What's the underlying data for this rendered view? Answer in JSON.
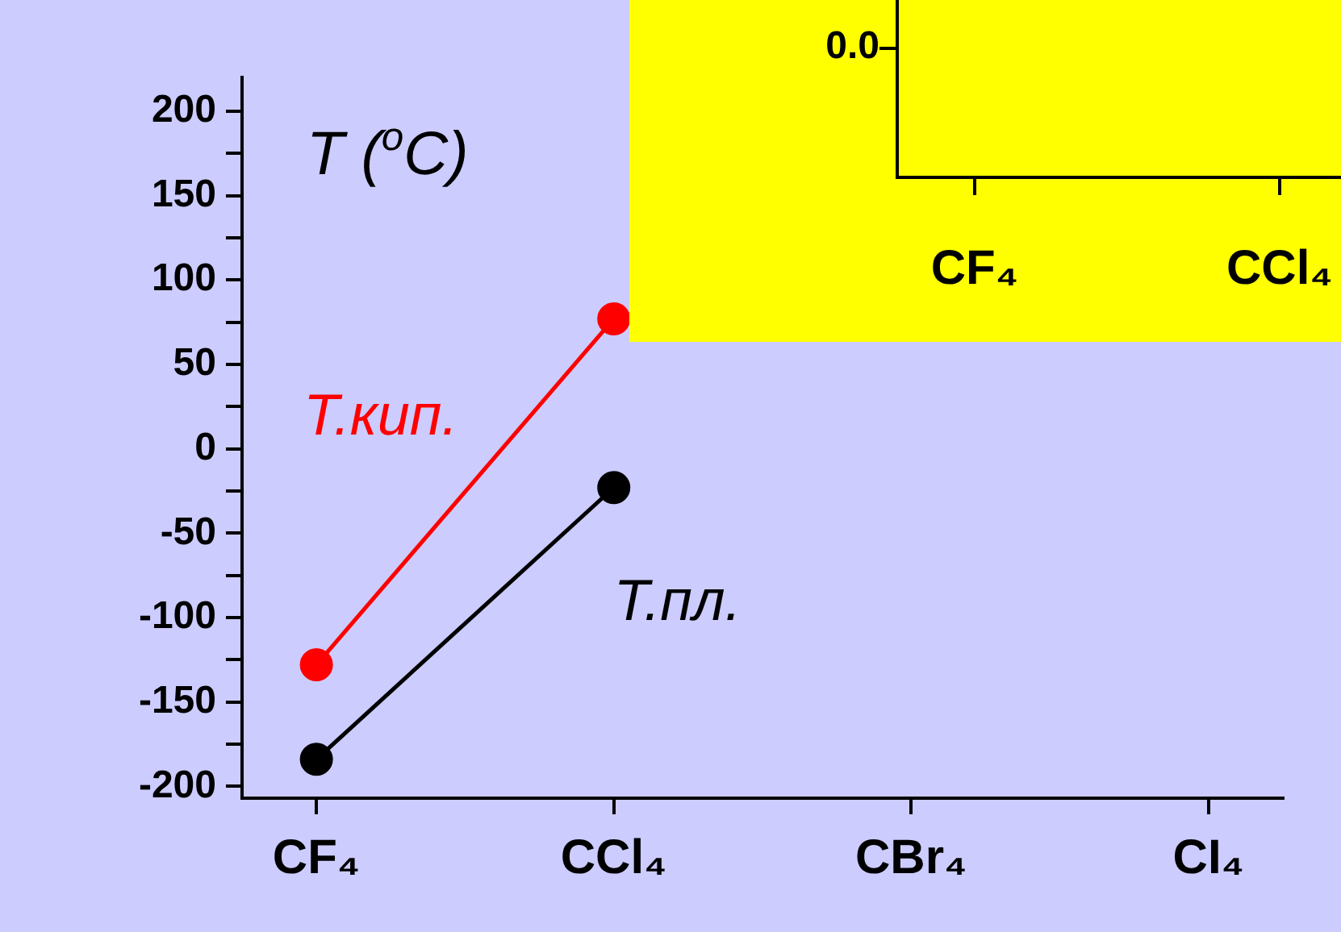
{
  "chart_data": [
    {
      "type": "line",
      "ylabel": "T ($^{o}$C)",
      "categories": [
        "CF₄",
        "CCl₄",
        "CBr₄",
        "CI₄"
      ],
      "ylim": [
        -207,
        220
      ],
      "yticks": [
        -200,
        -150,
        -100,
        -50,
        0,
        50,
        100,
        150,
        200
      ],
      "marker": "circle",
      "legend": false,
      "grid": false,
      "series": [
        {
          "name": "Т.кип.",
          "color": "#ff0000",
          "values": [
            -128,
            77,
            null,
            null
          ]
        },
        {
          "name": "Т.пл.",
          "color": "#000000",
          "values": [
            -184,
            -23,
            null,
            null
          ]
        }
      ]
    },
    {
      "type": "other",
      "categories": [
        "CF₄",
        "CCl₄"
      ],
      "annotations": [
        "0.0"
      ]
    }
  ]
}
